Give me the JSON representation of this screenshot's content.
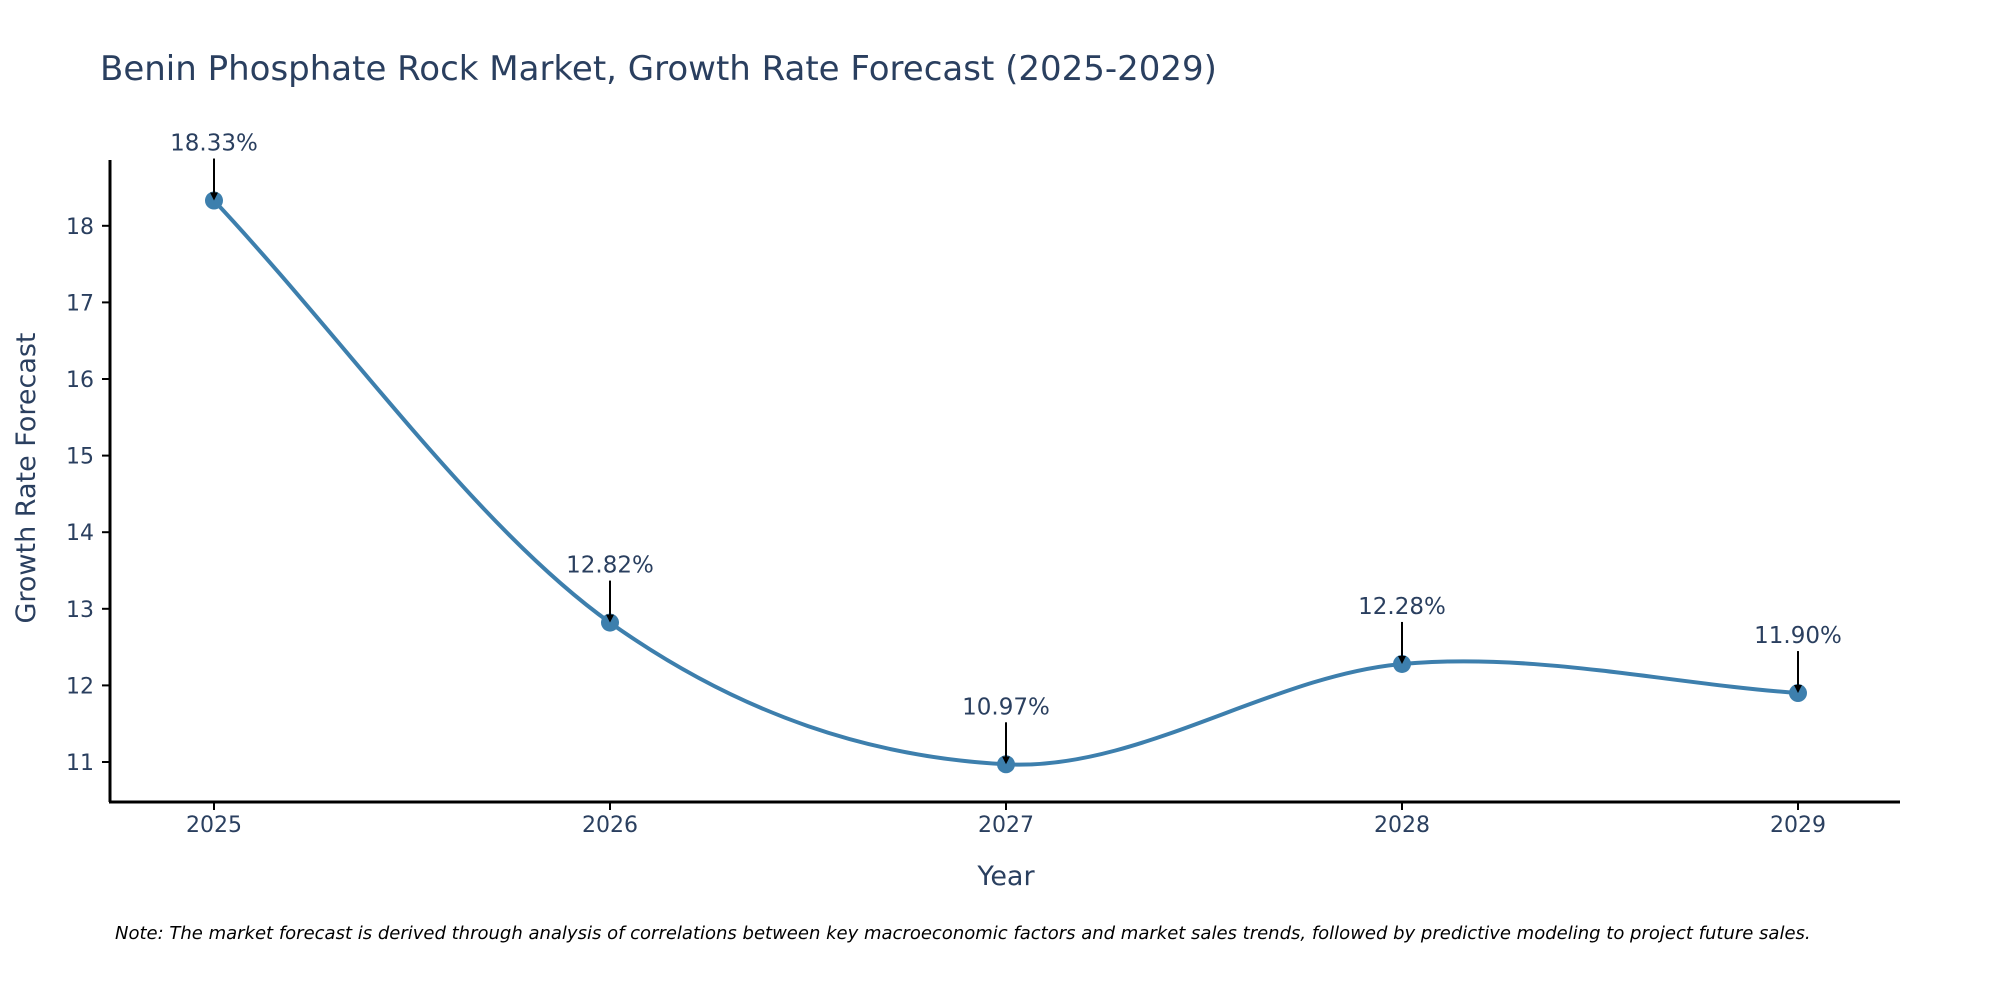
{
  "chart_data": {
    "type": "line",
    "title": "Benin Phosphate Rock Market, Growth Rate Forecast (2025-2029)",
    "xlabel": "Year",
    "ylabel": "Growth Rate Forecast",
    "categories": [
      "2025",
      "2026",
      "2027",
      "2028",
      "2029"
    ],
    "values": [
      18.33,
      12.82,
      10.97,
      12.28,
      11.9
    ],
    "data_labels": [
      "18.33%",
      "12.82%",
      "10.97%",
      "12.28%",
      "11.90%"
    ],
    "yticks": [
      11,
      12,
      13,
      14,
      15,
      16,
      17,
      18
    ],
    "ylim": [
      10.45,
      18.85
    ],
    "grid": false,
    "line_shape": "spline",
    "line_color": "#3d7fad",
    "marker_color": "#3d7fad",
    "annotation_arrow_color": "#000000",
    "note": "Note: The market forecast is derived through analysis of correlations between key macroeconomic factors and market sales trends, followed by predictive modeling to project future sales."
  }
}
